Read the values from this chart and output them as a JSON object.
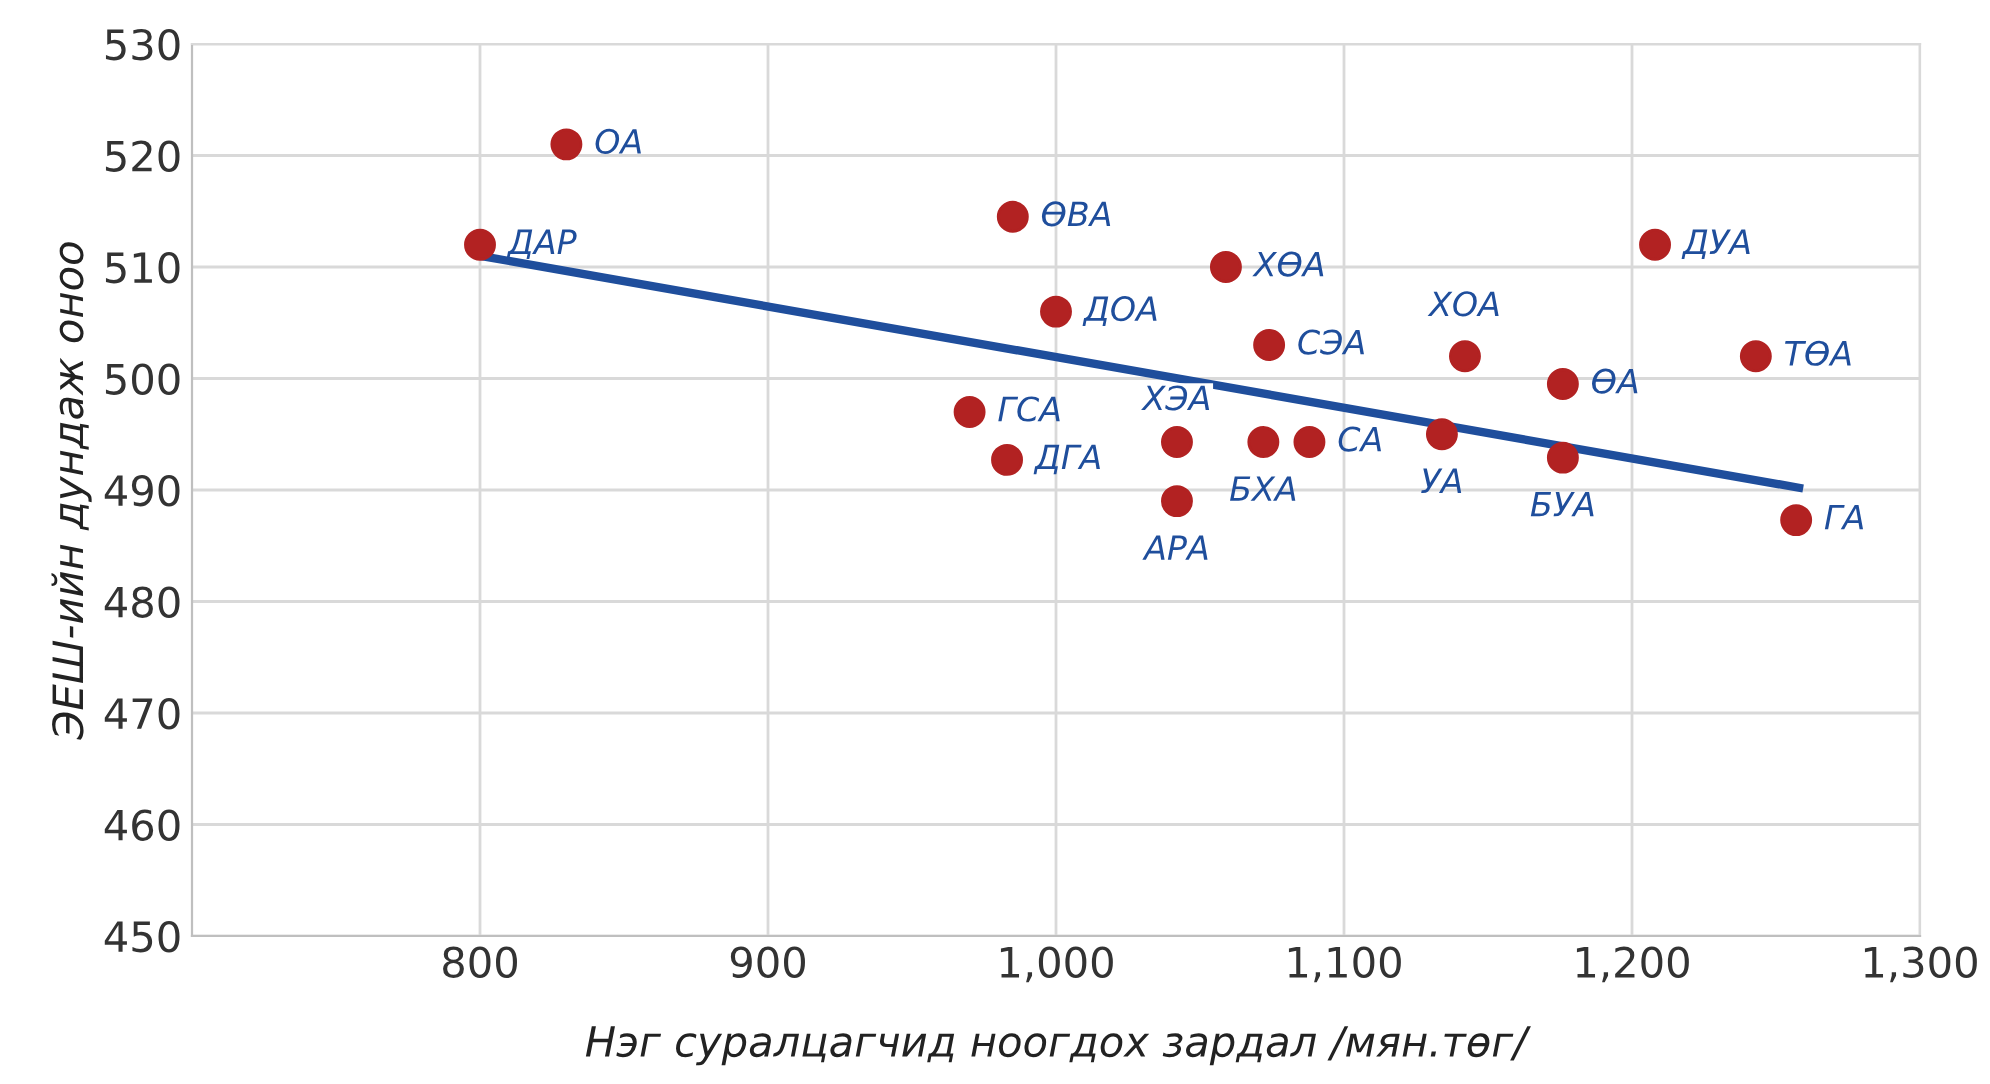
{
  "chart_data": {
    "type": "scatter",
    "xlabel": "Нэг суралцагчид ноогдох зардал /мян.төг/",
    "ylabel": "ЭЕШ-ийн дундаж оноо",
    "xlim": [
      700,
      1300
    ],
    "xticks": [
      {
        "value": 800,
        "label": "800"
      },
      {
        "value": 900,
        "label": "900"
      },
      {
        "value": 1000,
        "label": "1,000"
      },
      {
        "value": 1100,
        "label": "1,100"
      },
      {
        "value": 1200,
        "label": "1,200"
      },
      {
        "value": 1300,
        "label": "1,300"
      }
    ],
    "ylim": [
      450,
      530
    ],
    "yticks": [
      450,
      460,
      470,
      480,
      490,
      500,
      510,
      520,
      530
    ],
    "grid": true,
    "marker": "circle",
    "series": [
      {
        "color": "#b22222",
        "x": [
          800,
          830,
          985,
          1059,
          1000,
          1074,
          1142,
          1208,
          1243,
          1176,
          970,
          1042,
          1072,
          1088,
          1134,
          983,
          1176,
          1042,
          1257
        ],
        "values": [
          512,
          521,
          514.5,
          510,
          506,
          503,
          502,
          512,
          502,
          499.5,
          497,
          494.3,
          494.3,
          494.3,
          495,
          492.7,
          492.9,
          489,
          487.3
        ]
      },
      {
        "type": "line",
        "color": "#1f4e9c",
        "x": [
          800,
          1258
        ],
        "values": [
          511,
          490.2
        ],
        "marker": "none",
        "line_style": "solid"
      }
    ],
    "annotations": [
      {
        "text": "ДАР",
        "x": 800,
        "y": 512
      },
      {
        "text": "ОА",
        "x": 830,
        "y": 521
      },
      {
        "text": "ӨВА",
        "x": 985,
        "y": 514.5
      },
      {
        "text": "ХӨА",
        "x": 1059,
        "y": 510
      },
      {
        "text": "ДОА",
        "x": 1000,
        "y": 506
      },
      {
        "text": "СЭА",
        "x": 1074,
        "y": 503
      },
      {
        "text": "ХОА",
        "x": 1142,
        "y": 502
      },
      {
        "text": "ДУА",
        "x": 1208,
        "y": 512
      },
      {
        "text": "ТӨА",
        "x": 1243,
        "y": 502
      },
      {
        "text": "ӨА",
        "x": 1176,
        "y": 499.5
      },
      {
        "text": "ГСА",
        "x": 970,
        "y": 497
      },
      {
        "text": "ХЭА",
        "x": 1042,
        "y": 494.3
      },
      {
        "text": "БХА",
        "x": 1072,
        "y": 494.3
      },
      {
        "text": "СА",
        "x": 1088,
        "y": 494.3
      },
      {
        "text": "УА",
        "x": 1134,
        "y": 495
      },
      {
        "text": "ДГА",
        "x": 983,
        "y": 492.7
      },
      {
        "text": "БУА",
        "x": 1176,
        "y": 492.9
      },
      {
        "text": "АРА",
        "x": 1042,
        "y": 489
      },
      {
        "text": "ГА",
        "x": 1257,
        "y": 487.3
      }
    ]
  }
}
